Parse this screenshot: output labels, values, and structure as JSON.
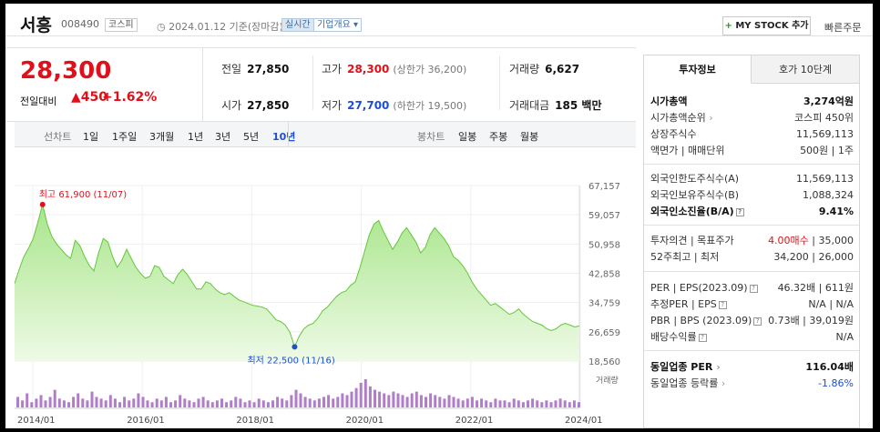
{
  "header": {
    "name": "서흥",
    "code": "008490",
    "market": "코스피",
    "date_text": "2024.01.12 기준(장마감)",
    "realtime_label": "실시간",
    "corp_label": "기업개요",
    "mystock_label": "MY STOCK 추가",
    "quick_order_label": "빠른주문"
  },
  "price": {
    "current": "28,300",
    "change_label": "전일대비",
    "change_value": "450",
    "change_pct": "+1.62%"
  },
  "quotes": {
    "prev_label": "전일",
    "prev": "27,850",
    "high_label": "고가",
    "high": "28,300",
    "upper_limit": "(상한가 36,200)",
    "volume_label": "거래량",
    "volume": "6,627",
    "open_label": "시가",
    "open": "27,850",
    "low_label": "저가",
    "low": "27,700",
    "lower_limit": "(하한가 19,500)",
    "amount_label": "거래대금",
    "amount": "185 백만"
  },
  "period_bar": {
    "line_label": "선차트",
    "periods": [
      "1일",
      "1주일",
      "3개월",
      "1년",
      "3년",
      "5년",
      "10년"
    ],
    "selected": "10년",
    "candle_label": "봉차트",
    "candles": [
      "일봉",
      "주봉",
      "월봉"
    ]
  },
  "chart_data": {
    "type": "area",
    "series": [
      {
        "name": "",
        "values": [
          40000,
          44000,
          47500,
          49800,
          52500,
          57000,
          61900,
          56500,
          53000,
          51000,
          49500,
          48000,
          47000,
          52000,
          50500,
          47500,
          45000,
          43500,
          48500,
          52500,
          51500,
          47500,
          44500,
          46500,
          49500,
          47000,
          44500,
          42800,
          41500,
          42000,
          45000,
          44500,
          42000,
          41000,
          40000,
          42500,
          44000,
          42500,
          40500,
          38500,
          38500,
          40500,
          40000,
          38500,
          37500,
          37000,
          37500,
          36500,
          35500,
          35000,
          34500,
          34000,
          33800,
          33500,
          33000,
          31500,
          30000,
          29500,
          28500,
          26500,
          22500,
          25500,
          27500,
          28500,
          29000,
          30500,
          32500,
          33500,
          35000,
          36500,
          37500,
          38000,
          39500,
          40500,
          44500,
          49000,
          53500,
          56500,
          57500,
          54500,
          52000,
          49500,
          51500,
          54000,
          55500,
          53500,
          51500,
          48500,
          50000,
          53500,
          55500,
          54000,
          52500,
          50500,
          47500,
          46500,
          45000,
          43000,
          40500,
          38500,
          37000,
          35500,
          34000,
          34500,
          33500,
          32500,
          31500,
          32000,
          33000,
          31500,
          30500,
          29500,
          29000,
          28500,
          27500,
          27000,
          27500,
          28500,
          29000,
          28500,
          28000,
          28300
        ]
      }
    ],
    "x_tick_labels": [
      "2014/01",
      "2016/01",
      "2018/01",
      "2020/01",
      "2022/01",
      "2024/01"
    ],
    "y_tick_labels": [
      "67,157",
      "59,057",
      "50,958",
      "42,858",
      "34,759",
      "26,659",
      "18,560"
    ],
    "ylim": [
      18560,
      67157
    ],
    "max_label": "최고 61,900 (11/07)",
    "min_label": "최저 22,500 (11/16)",
    "volume_label": "거래량",
    "volume_values": [
      6,
      4,
      8,
      3,
      5,
      7,
      4,
      6,
      10,
      5,
      4,
      3,
      6,
      8,
      5,
      4,
      9,
      6,
      5,
      4,
      7,
      5,
      3,
      6,
      4,
      5,
      8,
      6,
      4,
      3,
      5,
      4,
      6,
      3,
      4,
      7,
      5,
      4,
      3,
      5,
      6,
      4,
      3,
      4,
      5,
      3,
      4,
      6,
      5,
      3,
      4,
      3,
      5,
      4,
      3,
      4,
      6,
      5,
      4,
      7,
      10,
      8,
      6,
      5,
      4,
      5,
      6,
      7,
      5,
      6,
      8,
      7,
      9,
      11,
      14,
      16,
      12,
      10,
      9,
      8,
      7,
      9,
      8,
      7,
      6,
      8,
      9,
      7,
      6,
      8,
      7,
      6,
      5,
      7,
      6,
      5,
      4,
      5,
      6,
      4,
      5,
      4,
      3,
      5,
      4,
      4,
      3,
      5,
      4,
      3,
      4,
      5,
      4,
      3,
      4,
      3,
      4,
      5,
      4,
      3,
      4,
      3
    ]
  },
  "right_panel": {
    "tabs": [
      "투자정보",
      "호가 10단계"
    ],
    "market_cap_label": "시가총액",
    "market_cap": "3,274억원",
    "market_cap_rank_label": "시가총액순위",
    "market_cap_rank": "코스피 450위",
    "shares_label": "상장주식수",
    "shares": "11,569,113",
    "par_label": "액면가 | 매매단위",
    "par": "500원 | 1주",
    "foreign_limit_label": "외국인한도주식수(A)",
    "foreign_limit": "11,569,113",
    "foreign_hold_label": "외국인보유주식수(B)",
    "foreign_hold": "1,088,324",
    "foreign_ratio_label": "외국인소진율(B/A)",
    "foreign_ratio": "9.41%",
    "opinion_label": "투자의견 | 목표주가",
    "opinion": "4.00매수",
    "target": "35,000",
    "range52_label": "52주최고 | 최저",
    "range52": "34,200 | 26,000",
    "per_label": "PER | EPS(2023.09)",
    "per": "46.32배 | 611원",
    "est_per_label": "추정PER | EPS",
    "est_per": "N/A | N/A",
    "pbr_label": "PBR | BPS (2023.09)",
    "pbr": "0.73배 | 39,019원",
    "dividend_label": "배당수익률",
    "dividend": "N/A",
    "industry_per_label": "동일업종 PER",
    "industry_per": "116.04배",
    "industry_rate_label": "동일업종 등락률",
    "industry_rate": "-1.86%"
  }
}
